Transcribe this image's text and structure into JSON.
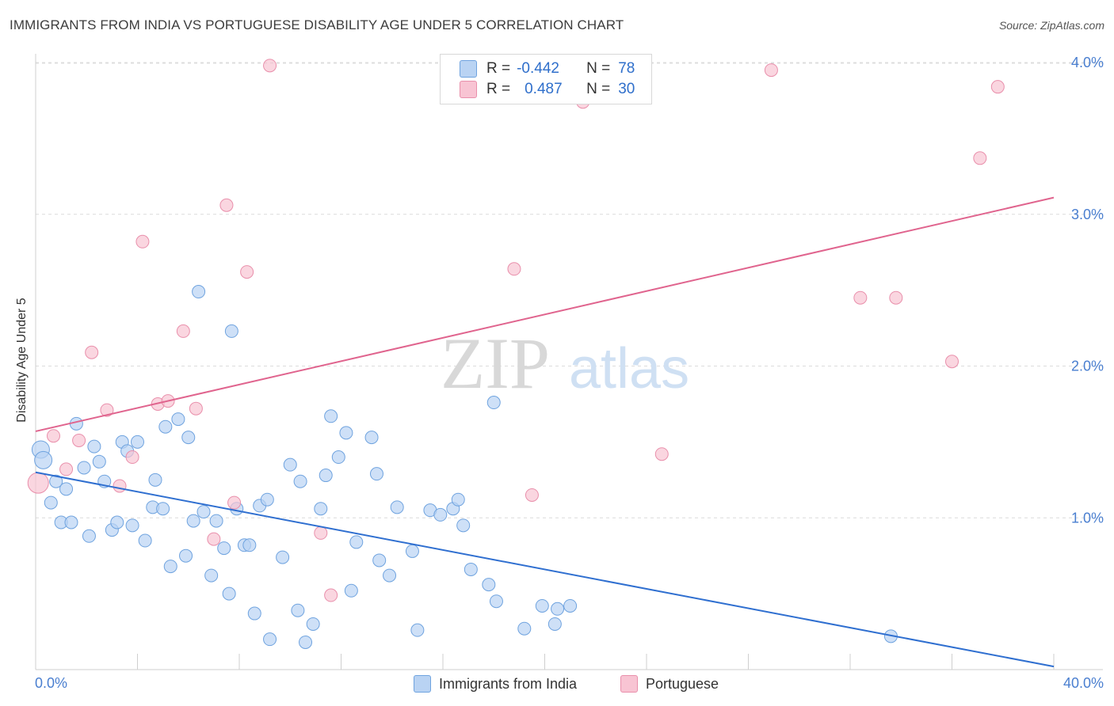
{
  "title": "IMMIGRANTS FROM INDIA VS PORTUGUESE DISABILITY AGE UNDER 5 CORRELATION CHART",
  "source": "Source: ZipAtlas.com",
  "watermark": {
    "zip": "ZIP",
    "atlas": "atlas"
  },
  "legend": {
    "rows": [
      {
        "r_label": "R =",
        "r_value": "-0.442",
        "n_label": "N =",
        "n_value": "78"
      },
      {
        "r_label": "R =",
        "r_value": "0.487",
        "n_label": "N =",
        "n_value": "30"
      }
    ]
  },
  "bottom_legend": {
    "india": "Immigrants from India",
    "portuguese": "Portuguese"
  },
  "colors": {
    "india_fill": "#b9d3f3",
    "india_stroke": "#6fa3df",
    "india_line": "#2f6fd0",
    "portuguese_fill": "#f8c4d3",
    "portuguese_stroke": "#e98fab",
    "portuguese_line": "#e0648e",
    "tick_label": "#4a7fd0",
    "grid": "#dcdcdc"
  },
  "chart_data": {
    "type": "scatter",
    "title": "IMMIGRANTS FROM INDIA VS PORTUGUESE DISABILITY AGE UNDER 5 CORRELATION CHART",
    "xlabel": "",
    "ylabel": "Disability Age Under 5",
    "xlim": [
      0,
      40
    ],
    "ylim": [
      0,
      4.1
    ],
    "x_tick_labels": [
      "0.0%",
      "40.0%"
    ],
    "y_ticks": [
      1,
      2,
      3,
      4
    ],
    "y_tick_labels": [
      "1.0%",
      "2.0%",
      "3.0%",
      "4.0%"
    ],
    "grid": true,
    "legend_position": "top-center",
    "series": [
      {
        "name": "Immigrants from India",
        "R": -0.442,
        "N": 78,
        "trend": {
          "x": [
            0,
            40
          ],
          "y": [
            1.3,
            0.02
          ]
        },
        "points": [
          [
            0.2,
            1.45
          ],
          [
            0.3,
            1.38
          ],
          [
            0.8,
            1.24
          ],
          [
            0.6,
            1.1
          ],
          [
            1.2,
            1.19
          ],
          [
            1.6,
            1.62
          ],
          [
            2.3,
            1.47
          ],
          [
            1.9,
            1.33
          ],
          [
            2.5,
            1.37
          ],
          [
            2.7,
            1.24
          ],
          [
            1.0,
            0.97
          ],
          [
            1.4,
            0.97
          ],
          [
            2.1,
            0.88
          ],
          [
            3.0,
            0.92
          ],
          [
            3.2,
            0.97
          ],
          [
            3.4,
            1.5
          ],
          [
            3.6,
            1.44
          ],
          [
            3.8,
            0.95
          ],
          [
            4.0,
            1.5
          ],
          [
            4.3,
            0.85
          ],
          [
            4.6,
            1.07
          ],
          [
            4.7,
            1.25
          ],
          [
            5.0,
            1.06
          ],
          [
            5.1,
            1.6
          ],
          [
            5.3,
            0.68
          ],
          [
            5.6,
            1.65
          ],
          [
            5.9,
            0.75
          ],
          [
            6.0,
            1.53
          ],
          [
            6.2,
            0.98
          ],
          [
            6.6,
            1.04
          ],
          [
            6.4,
            2.49
          ],
          [
            6.9,
            0.62
          ],
          [
            7.1,
            0.98
          ],
          [
            7.4,
            0.8
          ],
          [
            7.6,
            0.5
          ],
          [
            7.7,
            2.23
          ],
          [
            7.9,
            1.06
          ],
          [
            8.2,
            0.82
          ],
          [
            8.4,
            0.82
          ],
          [
            8.6,
            0.37
          ],
          [
            8.8,
            1.08
          ],
          [
            9.1,
            1.12
          ],
          [
            9.2,
            0.2
          ],
          [
            9.7,
            0.74
          ],
          [
            10.0,
            1.35
          ],
          [
            10.3,
            0.39
          ],
          [
            10.4,
            1.24
          ],
          [
            10.6,
            0.18
          ],
          [
            10.9,
            0.3
          ],
          [
            11.2,
            1.06
          ],
          [
            11.4,
            1.28
          ],
          [
            11.6,
            1.67
          ],
          [
            11.9,
            1.4
          ],
          [
            12.2,
            1.56
          ],
          [
            12.4,
            0.52
          ],
          [
            12.6,
            0.84
          ],
          [
            13.2,
            1.53
          ],
          [
            13.4,
            1.29
          ],
          [
            13.5,
            0.72
          ],
          [
            13.9,
            0.62
          ],
          [
            14.2,
            1.07
          ],
          [
            14.8,
            0.78
          ],
          [
            15.0,
            0.26
          ],
          [
            15.5,
            1.05
          ],
          [
            15.9,
            1.02
          ],
          [
            16.4,
            1.06
          ],
          [
            16.6,
            1.12
          ],
          [
            16.8,
            0.95
          ],
          [
            17.1,
            0.66
          ],
          [
            17.8,
            0.56
          ],
          [
            18.0,
            1.76
          ],
          [
            18.1,
            0.45
          ],
          [
            19.2,
            0.27
          ],
          [
            19.9,
            0.42
          ],
          [
            20.4,
            0.3
          ],
          [
            20.5,
            0.4
          ],
          [
            21.0,
            0.42
          ],
          [
            33.6,
            0.22
          ]
        ]
      },
      {
        "name": "Portuguese",
        "R": 0.487,
        "N": 30,
        "trend": {
          "x": [
            0,
            40
          ],
          "y": [
            1.57,
            3.11
          ]
        },
        "points": [
          [
            0.1,
            1.23
          ],
          [
            0.7,
            1.54
          ],
          [
            1.2,
            1.32
          ],
          [
            1.7,
            1.51
          ],
          [
            2.2,
            2.09
          ],
          [
            2.8,
            1.71
          ],
          [
            3.3,
            1.21
          ],
          [
            3.8,
            1.4
          ],
          [
            4.2,
            2.82
          ],
          [
            4.8,
            1.75
          ],
          [
            5.2,
            1.77
          ],
          [
            5.8,
            2.23
          ],
          [
            6.3,
            1.72
          ],
          [
            7.0,
            0.86
          ],
          [
            7.5,
            3.06
          ],
          [
            7.8,
            1.1
          ],
          [
            8.3,
            2.62
          ],
          [
            9.2,
            3.98
          ],
          [
            11.2,
            0.9
          ],
          [
            11.6,
            0.49
          ],
          [
            18.8,
            2.64
          ],
          [
            19.5,
            1.15
          ],
          [
            21.5,
            3.74
          ],
          [
            24.6,
            1.42
          ],
          [
            28.9,
            3.95
          ],
          [
            32.4,
            2.45
          ],
          [
            33.8,
            2.45
          ],
          [
            36.0,
            2.03
          ],
          [
            37.1,
            3.37
          ],
          [
            37.8,
            3.84
          ]
        ]
      }
    ]
  }
}
